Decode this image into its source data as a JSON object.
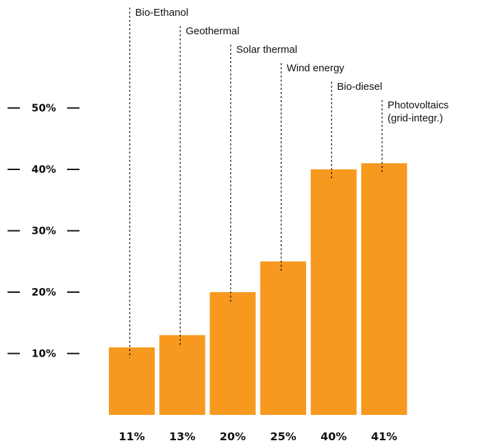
{
  "chart_data": {
    "type": "bar",
    "categories": [
      "Bio-Ethanol",
      "Geothermal",
      "Solar thermal",
      "Wind energy",
      "Bio-diesel",
      "Photovoltaics (grid-integr.)"
    ],
    "category_label_lines": [
      [
        "Bio-Ethanol"
      ],
      [
        "Geothermal"
      ],
      [
        "Solar thermal"
      ],
      [
        "Wind energy"
      ],
      [
        "Bio-diesel"
      ],
      [
        "Photovoltaics",
        "(grid-integr.)"
      ]
    ],
    "values": [
      11,
      13,
      20,
      25,
      40,
      41
    ],
    "value_labels": [
      "11%",
      "13%",
      "20%",
      "25%",
      "40%",
      "41%"
    ],
    "yticks": [
      10,
      20,
      30,
      40,
      50
    ],
    "ytick_labels": [
      "10%",
      "20%",
      "30%",
      "40%",
      "50%"
    ],
    "ylim": [
      0,
      50
    ],
    "grid": false,
    "bar_color": "#f7991f",
    "title": "",
    "xlabel": "",
    "ylabel": ""
  }
}
